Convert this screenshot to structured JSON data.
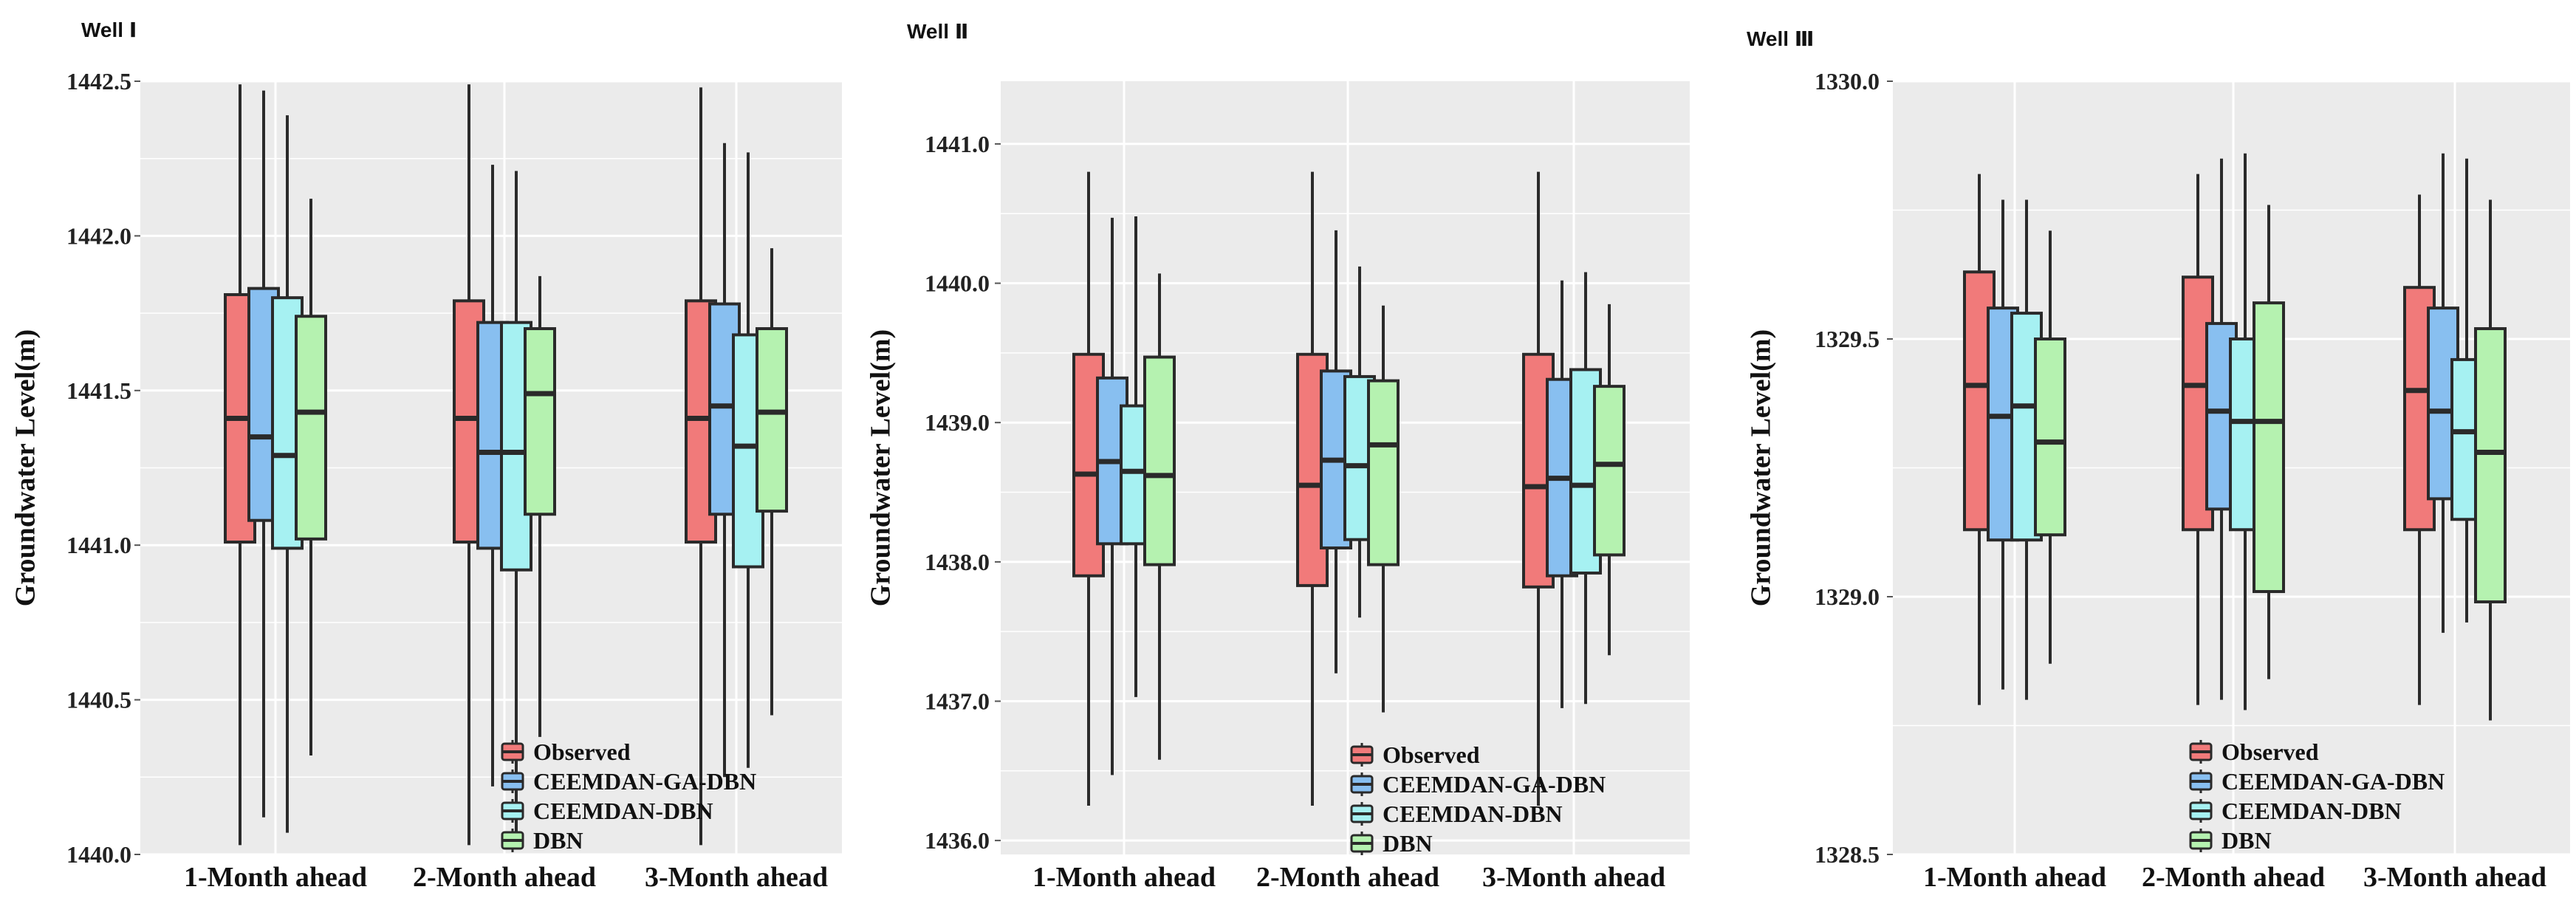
{
  "colors": {
    "panel_background": "#ebebeb",
    "gridline": "#ffffff",
    "outline": "#2a2a2a"
  },
  "legend": [
    {
      "label": "Observed",
      "color": "#f17a7a"
    },
    {
      "label": "CEEMDAN-GA-DBN",
      "color": "#88bff0"
    },
    {
      "label": "CEEMDAN-DBN",
      "color": "#a6f1f2"
    },
    {
      "label": "DBN",
      "color": "#b5f2b0"
    }
  ],
  "chart_data": [
    {
      "type": "boxplot",
      "title": "Well Ⅰ",
      "xlabel": "",
      "ylabel": "Groundwater Level(m)",
      "ylim": [
        1440.0,
        1442.5
      ],
      "yticks": [
        1440.0,
        1440.5,
        1441.0,
        1441.5,
        1442.0,
        1442.5
      ],
      "ytick_labels": [
        "1440.0",
        "1440.5",
        "1441.0",
        "1441.5",
        "1442.0",
        "1442.5"
      ],
      "categories": [
        "1-Month ahead",
        "2-Month ahead",
        "3-Month ahead"
      ],
      "legend_position": "bottom-right",
      "series": [
        {
          "name": "Observed",
          "boxes": [
            {
              "min": 1440.03,
              "q1": 1441.01,
              "median": 1441.41,
              "q3": 1441.81,
              "max": 1442.49
            },
            {
              "min": 1440.03,
              "q1": 1441.01,
              "median": 1441.41,
              "q3": 1441.79,
              "max": 1442.49
            },
            {
              "min": 1440.03,
              "q1": 1441.01,
              "median": 1441.41,
              "q3": 1441.79,
              "max": 1442.48
            }
          ]
        },
        {
          "name": "CEEMDAN-GA-DBN",
          "boxes": [
            {
              "min": 1440.12,
              "q1": 1441.08,
              "median": 1441.35,
              "q3": 1441.83,
              "max": 1442.47
            },
            {
              "min": 1440.22,
              "q1": 1440.99,
              "median": 1441.3,
              "q3": 1441.72,
              "max": 1442.23
            },
            {
              "min": 1440.25,
              "q1": 1441.1,
              "median": 1441.45,
              "q3": 1441.78,
              "max": 1442.3
            }
          ]
        },
        {
          "name": "CEEMDAN-DBN",
          "boxes": [
            {
              "min": 1440.07,
              "q1": 1440.99,
              "median": 1441.29,
              "q3": 1441.8,
              "max": 1442.39
            },
            {
              "min": 1440.05,
              "q1": 1440.92,
              "median": 1441.3,
              "q3": 1441.72,
              "max": 1442.21
            },
            {
              "min": 1440.28,
              "q1": 1440.93,
              "median": 1441.32,
              "q3": 1441.68,
              "max": 1442.27
            }
          ]
        },
        {
          "name": "DBN",
          "boxes": [
            {
              "min": 1440.32,
              "q1": 1441.02,
              "median": 1441.43,
              "q3": 1441.74,
              "max": 1442.12
            },
            {
              "min": 1440.38,
              "q1": 1441.1,
              "median": 1441.49,
              "q3": 1441.7,
              "max": 1441.87
            },
            {
              "min": 1440.45,
              "q1": 1441.11,
              "median": 1441.43,
              "q3": 1441.7,
              "max": 1441.96
            }
          ]
        }
      ]
    },
    {
      "type": "boxplot",
      "title": "Well Ⅱ",
      "xlabel": "",
      "ylabel": "Groundwater Level(m)",
      "ylim": [
        1435.9,
        1441.45
      ],
      "yticks": [
        1436.0,
        1437.0,
        1438.0,
        1439.0,
        1440.0,
        1441.0
      ],
      "ytick_labels": [
        "1436.0",
        "1437.0",
        "1438.0",
        "1439.0",
        "1440.0",
        "1441.0"
      ],
      "categories": [
        "1-Month ahead",
        "2-Month ahead",
        "3-Month ahead"
      ],
      "legend_position": "bottom-right",
      "series": [
        {
          "name": "Observed",
          "boxes": [
            {
              "min": 1436.25,
              "q1": 1437.9,
              "median": 1438.63,
              "q3": 1439.49,
              "max": 1440.8
            },
            {
              "min": 1436.25,
              "q1": 1437.83,
              "median": 1438.55,
              "q3": 1439.49,
              "max": 1440.8
            },
            {
              "min": 1436.25,
              "q1": 1437.82,
              "median": 1438.54,
              "q3": 1439.49,
              "max": 1440.8
            }
          ]
        },
        {
          "name": "CEEMDAN-GA-DBN",
          "boxes": [
            {
              "min": 1436.47,
              "q1": 1438.13,
              "median": 1438.72,
              "q3": 1439.32,
              "max": 1440.47
            },
            {
              "min": 1437.2,
              "q1": 1438.1,
              "median": 1438.73,
              "q3": 1439.37,
              "max": 1440.38
            },
            {
              "min": 1436.95,
              "q1": 1437.9,
              "median": 1438.6,
              "q3": 1439.31,
              "max": 1440.02
            }
          ]
        },
        {
          "name": "CEEMDAN-DBN",
          "boxes": [
            {
              "min": 1437.03,
              "q1": 1438.13,
              "median": 1438.65,
              "q3": 1439.12,
              "max": 1440.48
            },
            {
              "min": 1437.6,
              "q1": 1438.16,
              "median": 1438.69,
              "q3": 1439.33,
              "max": 1440.12
            },
            {
              "min": 1436.98,
              "q1": 1437.92,
              "median": 1438.55,
              "q3": 1439.38,
              "max": 1440.08
            }
          ]
        },
        {
          "name": "DBN",
          "boxes": [
            {
              "min": 1436.58,
              "q1": 1437.98,
              "median": 1438.62,
              "q3": 1439.47,
              "max": 1440.07
            },
            {
              "min": 1436.92,
              "q1": 1437.98,
              "median": 1438.84,
              "q3": 1439.3,
              "max": 1439.84
            },
            {
              "min": 1437.33,
              "q1": 1438.05,
              "median": 1438.7,
              "q3": 1439.26,
              "max": 1439.85
            }
          ]
        }
      ]
    },
    {
      "type": "boxplot",
      "title": "Well Ⅲ",
      "xlabel": "",
      "ylabel": "Groundwater Level(m)",
      "ylim": [
        1328.5,
        1330.0
      ],
      "yticks": [
        1328.5,
        1329.0,
        1329.5,
        1330.0
      ],
      "ytick_labels": [
        "1328.5",
        "1329.0",
        "1329.5",
        "1330.0"
      ],
      "categories": [
        "1-Month ahead",
        "2-Month ahead",
        "3-Month ahead"
      ],
      "legend_position": "bottom-right",
      "series": [
        {
          "name": "Observed",
          "boxes": [
            {
              "min": 1328.79,
              "q1": 1329.13,
              "median": 1329.41,
              "q3": 1329.63,
              "max": 1329.82
            },
            {
              "min": 1328.79,
              "q1": 1329.13,
              "median": 1329.41,
              "q3": 1329.62,
              "max": 1329.82
            },
            {
              "min": 1328.79,
              "q1": 1329.13,
              "median": 1329.4,
              "q3": 1329.6,
              "max": 1329.78
            }
          ]
        },
        {
          "name": "CEEMDAN-GA-DBN",
          "boxes": [
            {
              "min": 1328.82,
              "q1": 1329.11,
              "median": 1329.35,
              "q3": 1329.56,
              "max": 1329.77
            },
            {
              "min": 1328.8,
              "q1": 1329.17,
              "median": 1329.36,
              "q3": 1329.53,
              "max": 1329.85
            },
            {
              "min": 1328.93,
              "q1": 1329.19,
              "median": 1329.36,
              "q3": 1329.56,
              "max": 1329.86
            }
          ]
        },
        {
          "name": "CEEMDAN-DBN",
          "boxes": [
            {
              "min": 1328.8,
              "q1": 1329.11,
              "median": 1329.37,
              "q3": 1329.55,
              "max": 1329.77
            },
            {
              "min": 1328.78,
              "q1": 1329.13,
              "median": 1329.34,
              "q3": 1329.5,
              "max": 1329.86
            },
            {
              "min": 1328.95,
              "q1": 1329.15,
              "median": 1329.32,
              "q3": 1329.46,
              "max": 1329.85
            }
          ]
        },
        {
          "name": "DBN",
          "boxes": [
            {
              "min": 1328.87,
              "q1": 1329.12,
              "median": 1329.3,
              "q3": 1329.5,
              "max": 1329.71
            },
            {
              "min": 1328.84,
              "q1": 1329.01,
              "median": 1329.34,
              "q3": 1329.57,
              "max": 1329.76
            },
            {
              "min": 1328.76,
              "q1": 1328.99,
              "median": 1329.28,
              "q3": 1329.52,
              "max": 1329.77
            }
          ]
        }
      ]
    }
  ]
}
